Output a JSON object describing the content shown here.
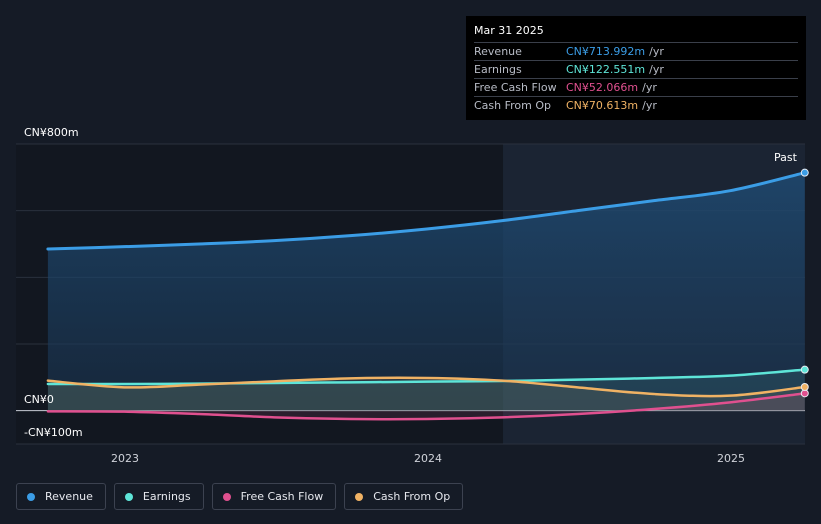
{
  "tooltip": {
    "date": "Mar 31 2025",
    "rows": [
      {
        "label": "Revenue",
        "value": "CN¥713.992m",
        "unit": "/yr",
        "color": "#3b9de6"
      },
      {
        "label": "Earnings",
        "value": "CN¥122.551m",
        "unit": "/yr",
        "color": "#5ee5d8"
      },
      {
        "label": "Free Cash Flow",
        "value": "CN¥52.066m",
        "unit": "/yr",
        "color": "#e0508f"
      },
      {
        "label": "Cash From Op",
        "value": "CN¥70.613m",
        "unit": "/yr",
        "color": "#f0b264"
      }
    ]
  },
  "labels": {
    "y_top": "CN¥800m",
    "y_zero": "CN¥0",
    "y_bottom": "-CN¥100m",
    "past": "Past"
  },
  "legend": [
    {
      "label": "Revenue",
      "color": "#3b9de6"
    },
    {
      "label": "Earnings",
      "color": "#5ee5d8"
    },
    {
      "label": "Free Cash Flow",
      "color": "#e0508f"
    },
    {
      "label": "Cash From Op",
      "color": "#f0b264"
    }
  ],
  "chart_data": {
    "type": "area",
    "y_unit": "CN¥m",
    "ylim": [
      -100,
      800
    ],
    "x_ticks": [
      "2023",
      "2024",
      "2025"
    ],
    "x": [
      "2022-09-30",
      "2022-12-31",
      "2023-03-31",
      "2023-06-30",
      "2023-09-30",
      "2023-12-31",
      "2024-03-31",
      "2024-06-30",
      "2024-09-30",
      "2024-12-31",
      "2025-03-31"
    ],
    "highlight_start": "2024-04-01",
    "series": [
      {
        "name": "Revenue",
        "color": "#3b9de6",
        "values": [
          485,
          492,
          500,
          510,
          525,
          545,
          570,
          600,
          630,
          660,
          714
        ]
      },
      {
        "name": "Earnings",
        "color": "#5ee5d8",
        "values": [
          80,
          80,
          81,
          83,
          85,
          87,
          89,
          93,
          98,
          105,
          123
        ]
      },
      {
        "name": "Free Cash Flow",
        "color": "#e0508f",
        "values": [
          -2,
          -3,
          -10,
          -20,
          -25,
          -25,
          -20,
          -10,
          5,
          25,
          52
        ]
      },
      {
        "name": "Cash From Op",
        "color": "#f0b264",
        "values": [
          90,
          70,
          78,
          88,
          97,
          98,
          90,
          70,
          50,
          45,
          71
        ]
      }
    ]
  }
}
